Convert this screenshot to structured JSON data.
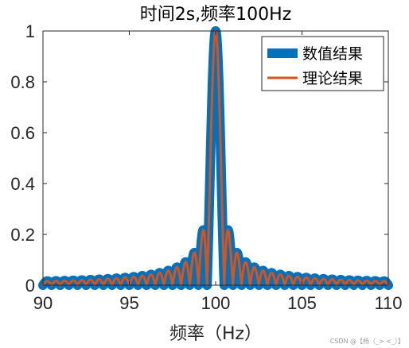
{
  "chart_data": {
    "type": "line",
    "title": "时间2s,频率100Hz",
    "xlabel": "频率（Hz）",
    "ylabel": "",
    "xlim": [
      90,
      110
    ],
    "ylim": [
      0,
      1
    ],
    "xticks": [
      90,
      95,
      100,
      105,
      110
    ],
    "xtick_labels": [
      "90",
      "95",
      "100",
      "105",
      "110"
    ],
    "yticks": [
      0,
      0.2,
      0.4,
      0.6,
      0.8,
      1
    ],
    "ytick_labels": [
      "0",
      "0.2",
      "0.4",
      "0.6",
      "0.8",
      "1"
    ],
    "grid": false,
    "legend": {
      "position": "top-right",
      "entries": [
        "数值结果",
        "理论结果"
      ]
    },
    "series": [
      {
        "name": "数值结果",
        "color": "#0072BD",
        "style": "thick-line",
        "model": "abs(sinc(2*(f-100)))",
        "x_range": [
          90,
          110
        ],
        "peak": {
          "x": 100,
          "y": 1
        }
      },
      {
        "name": "理论结果",
        "color": "#D95319",
        "style": "line",
        "model": "abs(sinc(2*(f-100)))",
        "x_range": [
          90,
          110
        ],
        "peak": {
          "x": 100,
          "y": 1
        }
      }
    ]
  },
  "watermark": "CSDN @【杨（_> <_）】"
}
